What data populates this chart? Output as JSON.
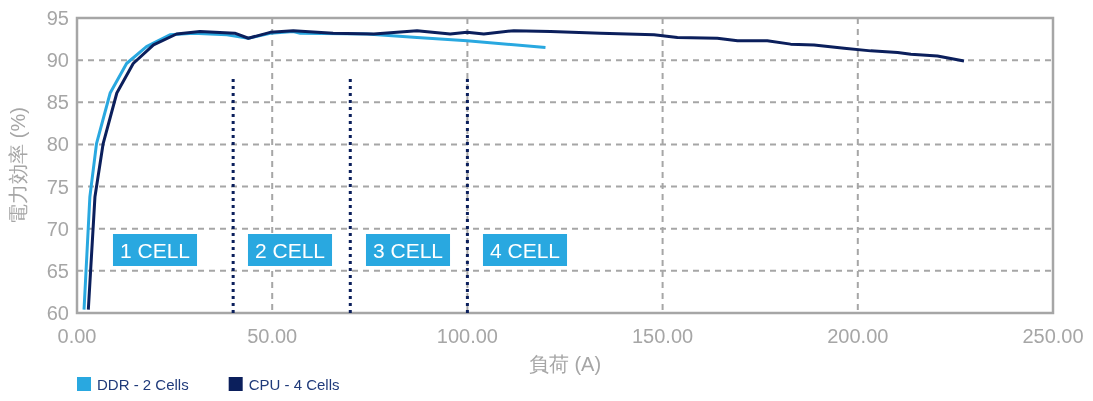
{
  "chart_data": {
    "type": "line",
    "xlabel": "負荷 (A)",
    "ylabel": "電力効率 (%)",
    "xlim": [
      0,
      250
    ],
    "ylim": [
      60,
      95
    ],
    "xticks": [
      {
        "value": 0,
        "label": "0.00"
      },
      {
        "value": 50,
        "label": "50.00"
      },
      {
        "value": 100,
        "label": "100.00"
      },
      {
        "value": 150,
        "label": "150.00"
      },
      {
        "value": 200,
        "label": "200.00"
      },
      {
        "value": 250,
        "label": "250.00"
      }
    ],
    "yticks": [
      60,
      65,
      70,
      75,
      80,
      85,
      90,
      95
    ],
    "grid": true,
    "legend": "bottom left",
    "series": [
      {
        "name": "DDR - 2 Cells",
        "color": "#29a8e0",
        "line_style": "solid",
        "x": [
          1.8,
          3.3,
          5.0,
          8.5,
          12.7,
          17.8,
          23.8,
          29.8,
          38.4,
          43.9,
          49.5,
          55.4,
          57.2,
          74.3,
          87.1,
          99.9,
          120
        ],
        "values": [
          60.4,
          73.8,
          80.1,
          86.1,
          89.6,
          91.6,
          93.0,
          93.2,
          93.0,
          92.6,
          93.2,
          93.4,
          93.2,
          93.1,
          92.7,
          92.3,
          91.5
        ]
      },
      {
        "name": "CPU - 4 Cells",
        "color": "#0b1f5c",
        "line_style": "solid",
        "x": [
          2.9,
          4.6,
          6.7,
          10.2,
          14.4,
          19.6,
          25.5,
          31.5,
          40.4,
          43.9,
          49.5,
          55.4,
          65.6,
          76,
          87.1,
          95.6,
          99.9,
          104.2,
          111.9,
          121.3,
          134.1,
          147.8,
          153.8,
          164,
          169.2,
          176.8,
          182.8,
          188.8,
          196.5,
          203.3,
          210.2,
          213.6,
          220.4,
          227.2
        ],
        "values": [
          60.4,
          73.8,
          80.1,
          86.1,
          89.6,
          91.8,
          93.1,
          93.4,
          93.2,
          92.6,
          93.3,
          93.5,
          93.2,
          93.1,
          93.5,
          93.1,
          93.3,
          93.1,
          93.5,
          93.4,
          93.2,
          93.0,
          92.7,
          92.6,
          92.3,
          92.3,
          91.9,
          91.8,
          91.4,
          91.1,
          90.9,
          90.7,
          90.5,
          89.9
        ]
      },
      {
        "color": "#0b1f5c",
        "line_style": "dotted",
        "x": [
          40,
          40
        ],
        "values": [
          60,
          88.2
        ]
      },
      {
        "color": "#0b1f5c",
        "line_style": "dotted",
        "x": [
          70,
          70
        ],
        "values": [
          60,
          88.2
        ]
      },
      {
        "color": "#0b1f5c",
        "line_style": "dotted",
        "x": [
          100,
          100
        ],
        "values": [
          60,
          88.2
        ]
      }
    ],
    "annotations": [
      "1 CELL",
      "2 CELL",
      "3 CELL",
      "4 CELL"
    ]
  }
}
